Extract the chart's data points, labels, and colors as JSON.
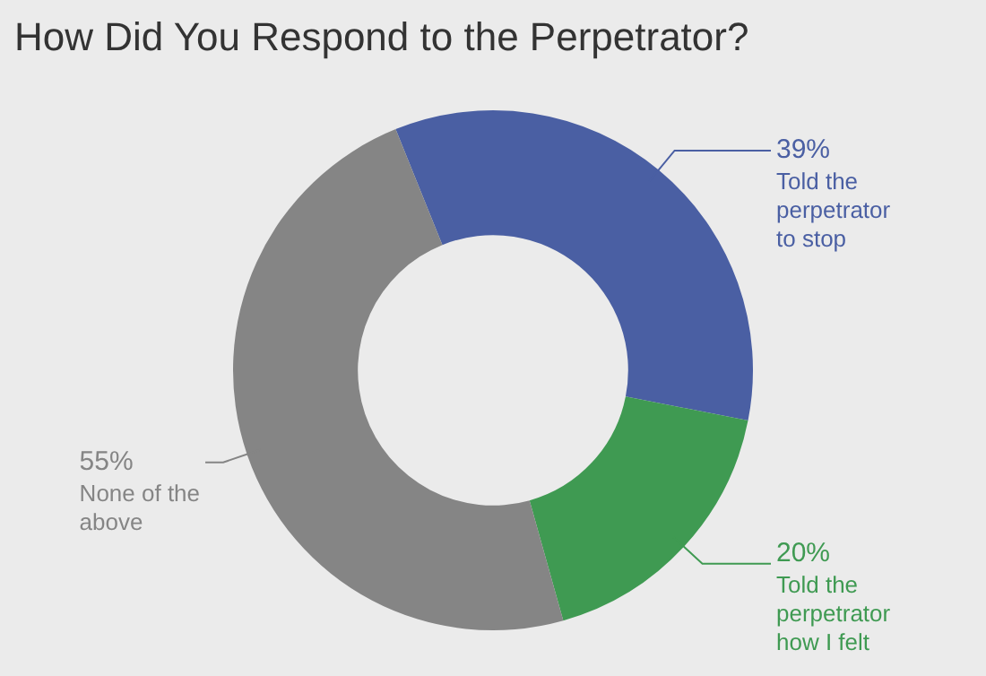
{
  "chart_data": {
    "type": "donut",
    "title": "How Did You Respond to the Perpetrator?",
    "categories": [
      "Told the perpetrator to stop",
      "Told the perpetrator how I felt",
      "None of the above"
    ],
    "values": [
      39,
      20,
      55
    ],
    "value_labels": [
      "39%",
      "20%",
      "55%"
    ],
    "colors": [
      "#4a5fa3",
      "#3f9a52",
      "#858585"
    ],
    "legend": false
  }
}
